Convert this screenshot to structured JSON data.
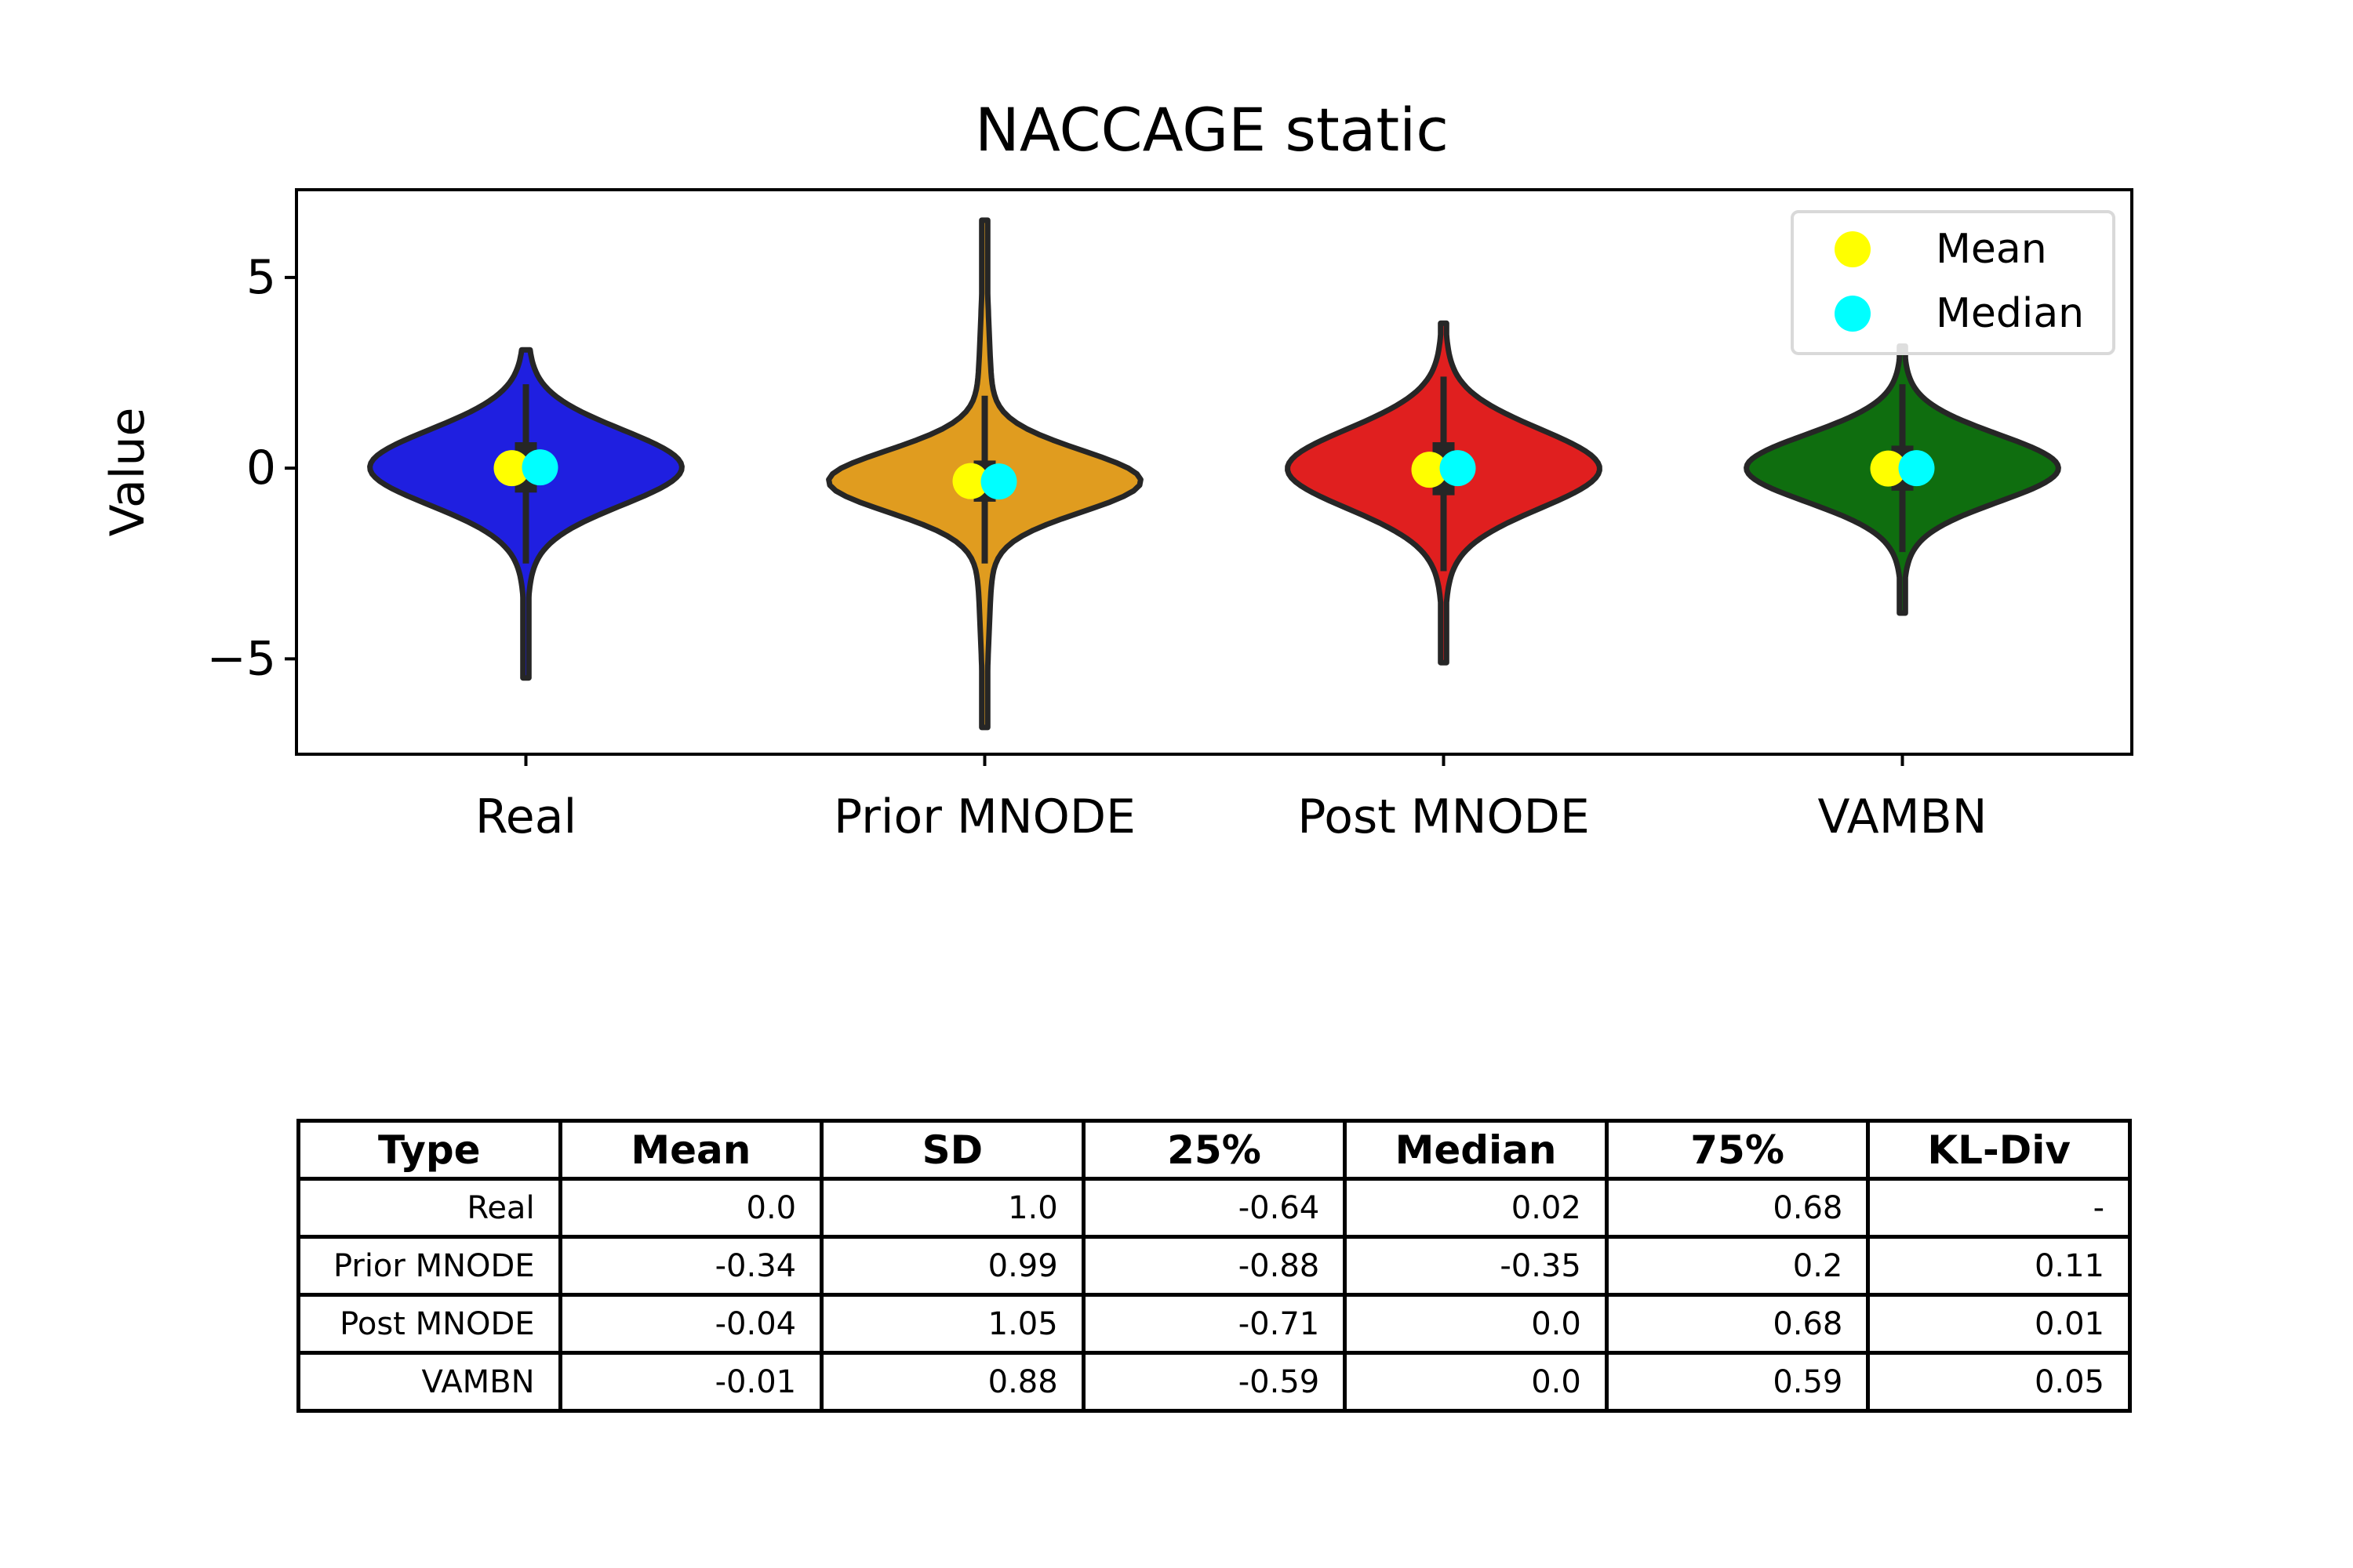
{
  "chart_data": {
    "type": "violin",
    "title": "NACCAGE static",
    "ylabel": "Value",
    "xlabel": "",
    "ylim": [
      -7.5,
      7.3
    ],
    "yticks": [
      -5,
      0,
      5
    ],
    "ytick_labels": [
      "−5",
      "0",
      "5"
    ],
    "grid": false,
    "legend_position": "top-right",
    "legend": [
      {
        "label": "Mean",
        "color": "#ffff00"
      },
      {
        "label": "Median",
        "color": "#00ffff"
      }
    ],
    "categories": [
      "Real",
      "Prior MNODE",
      "Post MNODE",
      "VAMBN"
    ],
    "series": [
      {
        "category": "Real",
        "color": "#1f1fe0",
        "mean": 0.0,
        "median": 0.02,
        "q1": -0.64,
        "q3": 0.68,
        "min": -5.5,
        "max": 3.1,
        "whisker_low": -2.5,
        "whisker_high": 2.2
      },
      {
        "category": "Prior MNODE",
        "color": "#e09c1f",
        "mean": -0.34,
        "median": -0.35,
        "q1": -0.88,
        "q3": 0.2,
        "min": -6.8,
        "max": 6.5,
        "whisker_low": -2.5,
        "whisker_high": 1.9
      },
      {
        "category": "Post MNODE",
        "color": "#e01f1f",
        "mean": -0.04,
        "median": 0.0,
        "q1": -0.71,
        "q3": 0.68,
        "min": -5.1,
        "max": 3.8,
        "whisker_low": -2.7,
        "whisker_high": 2.4
      },
      {
        "category": "VAMBN",
        "color": "#0f6e0f",
        "mean": -0.01,
        "median": 0.0,
        "q1": -0.59,
        "q3": 0.59,
        "min": -3.8,
        "max": 3.2,
        "whisker_low": -2.2,
        "whisker_high": 2.2
      }
    ]
  },
  "table": {
    "headers": [
      "Type",
      "Mean",
      "SD",
      "25%",
      "Median",
      "75%",
      "KL-Div"
    ],
    "rows": [
      [
        "Real",
        "0.0",
        "1.0",
        "-0.64",
        "0.02",
        "0.68",
        "-"
      ],
      [
        "Prior MNODE",
        "-0.34",
        "0.99",
        "-0.88",
        "-0.35",
        "0.2",
        "0.11"
      ],
      [
        "Post MNODE",
        "-0.04",
        "1.05",
        "-0.71",
        "0.0",
        "0.68",
        "0.01"
      ],
      [
        "VAMBN",
        "-0.01",
        "0.88",
        "-0.59",
        "0.0",
        "0.59",
        "0.05"
      ]
    ]
  }
}
